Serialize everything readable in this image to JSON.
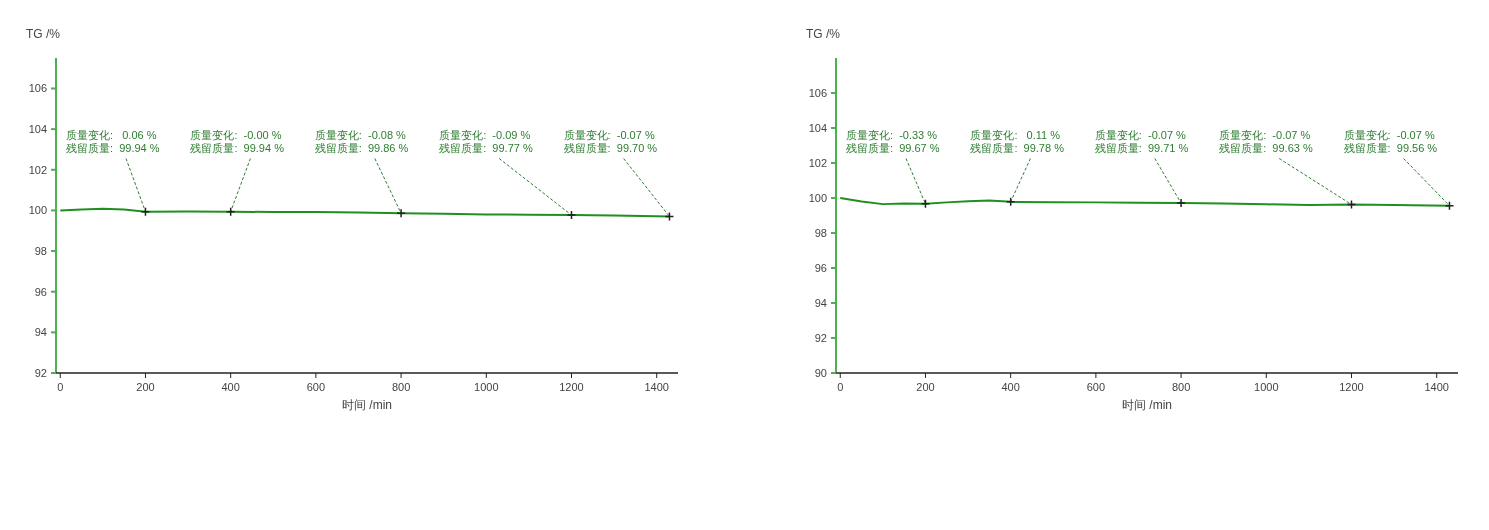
{
  "chart_data": [
    {
      "type": "line",
      "xlabel": "时间 /min",
      "ylabel": "TG /%",
      "xlim": [
        -10,
        1450
      ],
      "ylim": [
        92,
        107.5
      ],
      "xticks": [
        0,
        200,
        400,
        600,
        800,
        1000,
        1200,
        1400
      ],
      "yticks": [
        92,
        94,
        96,
        98,
        100,
        102,
        104,
        106
      ],
      "series": [
        {
          "color": "#1f8f1f",
          "x": [
            0,
            50,
            100,
            150,
            200,
            300,
            400,
            500,
            600,
            700,
            800,
            900,
            1000,
            1100,
            1200,
            1300,
            1430
          ],
          "values": [
            100,
            100.05,
            100.08,
            100.04,
            99.94,
            99.95,
            99.94,
            99.92,
            99.92,
            99.9,
            99.86,
            99.84,
            99.8,
            99.79,
            99.77,
            99.75,
            99.7
          ]
        }
      ],
      "annotations": [
        {
          "text": "质量变化:   0.06 %\n残留质量:  99.94 %",
          "x": 200,
          "y": 99.94
        },
        {
          "text": "质量变化:  -0.00 %\n残留质量:  99.94 %",
          "x": 400,
          "y": 99.94
        },
        {
          "text": "质量变化:  -0.08 %\n残留质量:  99.86 %",
          "x": 800,
          "y": 99.86
        },
        {
          "text": "质量变化:  -0.09 %\n残留质量:  99.77 %",
          "x": 1200,
          "y": 99.77
        },
        {
          "text": "质量变化:  -0.07 %\n残留质量:  99.70 %",
          "x": 1430,
          "y": 99.7
        }
      ]
    },
    {
      "type": "line",
      "xlabel": "时间 /min",
      "ylabel": "TG /%",
      "xlim": [
        -10,
        1450
      ],
      "ylim": [
        90,
        108
      ],
      "xticks": [
        0,
        200,
        400,
        600,
        800,
        1000,
        1200,
        1400
      ],
      "yticks": [
        90,
        92,
        94,
        96,
        98,
        100,
        102,
        104,
        106
      ],
      "series": [
        {
          "color": "#1f8f1f",
          "x": [
            0,
            50,
            100,
            150,
            200,
            250,
            300,
            350,
            400,
            500,
            600,
            700,
            800,
            900,
            1000,
            1100,
            1200,
            1300,
            1430
          ],
          "values": [
            100,
            99.8,
            99.65,
            99.68,
            99.67,
            99.75,
            99.82,
            99.86,
            99.78,
            99.76,
            99.75,
            99.73,
            99.71,
            99.68,
            99.64,
            99.6,
            99.63,
            99.6,
            99.56
          ]
        }
      ],
      "annotations": [
        {
          "text": "质量变化:  -0.33 %\n残留质量:  99.67 %",
          "x": 200,
          "y": 99.67
        },
        {
          "text": "质量变化:   0.11 %\n残留质量:  99.78 %",
          "x": 400,
          "y": 99.78
        },
        {
          "text": "质量变化:  -0.07 %\n残留质量:  99.71 %",
          "x": 800,
          "y": 99.71
        },
        {
          "text": "质量变化:  -0.07 %\n残留质量:  99.63 %",
          "x": 1200,
          "y": 99.63
        },
        {
          "text": "质量变化:  -0.07 %\n残留质量:  99.56 %",
          "x": 1430,
          "y": 99.56
        }
      ]
    }
  ]
}
